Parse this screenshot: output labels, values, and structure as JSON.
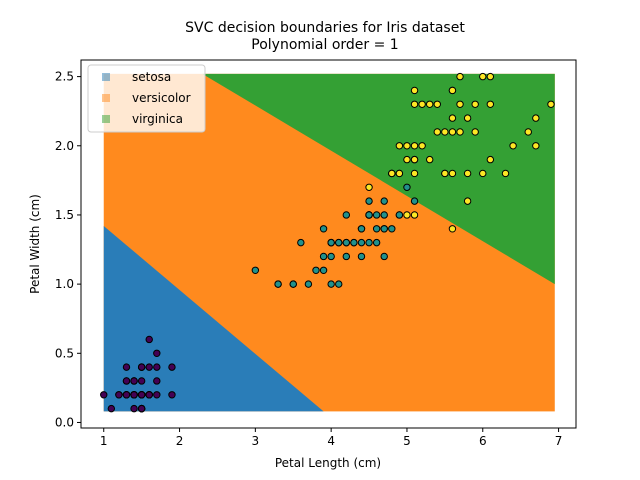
{
  "chart_data": {
    "type": "scatter",
    "title": "SVC decision boundaries for Iris dataset",
    "subtitle": "Polynomial order = 1",
    "xlabel": "Petal Length (cm)",
    "ylabel": "Petal Width (cm)",
    "xlim": [
      0.7,
      7.23
    ],
    "ylim": [
      -0.04,
      2.62
    ],
    "xticks": [
      "1",
      "2",
      "3",
      "4",
      "5",
      "6",
      "7"
    ],
    "yticks": [
      "0.0",
      "0.5",
      "1.0",
      "1.5",
      "2.0",
      "2.5"
    ],
    "grid": false,
    "legend": {
      "placement": "top-left",
      "entries": [
        "setosa",
        "versicolor",
        "virginica"
      ]
    },
    "region_colors": {
      "setosa": "#2a7db8",
      "versicolor": "#ff8a1e",
      "virginica": "#34a034"
    },
    "regions": {
      "x_range": [
        1.0,
        6.95
      ],
      "y_range": [
        0.08,
        2.52
      ],
      "setosa_versicolor_boundary": [
        [
          1.0,
          1.42
        ],
        [
          3.9,
          0.08
        ]
      ],
      "versicolor_virginica_boundary": [
        [
          2.3,
          2.52
        ],
        [
          6.95,
          1.0
        ]
      ]
    },
    "series": [
      {
        "class": "setosa",
        "color": "#440154",
        "points": [
          [
            1.4,
            0.2
          ],
          [
            1.4,
            0.2
          ],
          [
            1.3,
            0.2
          ],
          [
            1.5,
            0.2
          ],
          [
            1.4,
            0.2
          ],
          [
            1.7,
            0.4
          ],
          [
            1.4,
            0.3
          ],
          [
            1.5,
            0.2
          ],
          [
            1.4,
            0.2
          ],
          [
            1.5,
            0.1
          ],
          [
            1.5,
            0.2
          ],
          [
            1.6,
            0.2
          ],
          [
            1.4,
            0.1
          ],
          [
            1.1,
            0.1
          ],
          [
            1.2,
            0.2
          ],
          [
            1.5,
            0.4
          ],
          [
            1.3,
            0.4
          ],
          [
            1.4,
            0.3
          ],
          [
            1.7,
            0.3
          ],
          [
            1.5,
            0.3
          ],
          [
            1.7,
            0.2
          ],
          [
            1.5,
            0.4
          ],
          [
            1.0,
            0.2
          ],
          [
            1.7,
            0.5
          ],
          [
            1.9,
            0.2
          ],
          [
            1.6,
            0.2
          ],
          [
            1.6,
            0.4
          ],
          [
            1.5,
            0.2
          ],
          [
            1.4,
            0.2
          ],
          [
            1.6,
            0.2
          ],
          [
            1.6,
            0.2
          ],
          [
            1.5,
            0.4
          ],
          [
            1.5,
            0.1
          ],
          [
            1.4,
            0.2
          ],
          [
            1.5,
            0.1
          ],
          [
            1.2,
            0.2
          ],
          [
            1.3,
            0.2
          ],
          [
            1.5,
            0.1
          ],
          [
            1.3,
            0.2
          ],
          [
            1.5,
            0.2
          ],
          [
            1.3,
            0.3
          ],
          [
            1.3,
            0.3
          ],
          [
            1.3,
            0.2
          ],
          [
            1.6,
            0.6
          ],
          [
            1.9,
            0.4
          ],
          [
            1.4,
            0.3
          ],
          [
            1.6,
            0.2
          ],
          [
            1.4,
            0.2
          ],
          [
            1.5,
            0.2
          ],
          [
            1.4,
            0.2
          ]
        ]
      },
      {
        "class": "versicolor",
        "color": "#21918c",
        "points": [
          [
            4.7,
            1.4
          ],
          [
            4.5,
            1.5
          ],
          [
            4.9,
            1.5
          ],
          [
            4.0,
            1.3
          ],
          [
            4.6,
            1.5
          ],
          [
            4.5,
            1.3
          ],
          [
            4.7,
            1.6
          ],
          [
            3.3,
            1.0
          ],
          [
            4.6,
            1.3
          ],
          [
            3.9,
            1.4
          ],
          [
            3.5,
            1.0
          ],
          [
            4.2,
            1.5
          ],
          [
            4.0,
            1.0
          ],
          [
            4.7,
            1.4
          ],
          [
            3.6,
            1.3
          ],
          [
            4.4,
            1.4
          ],
          [
            4.5,
            1.5
          ],
          [
            4.1,
            1.0
          ],
          [
            4.5,
            1.5
          ],
          [
            3.9,
            1.1
          ],
          [
            4.8,
            1.8
          ],
          [
            4.0,
            1.3
          ],
          [
            4.9,
            1.5
          ],
          [
            4.7,
            1.2
          ],
          [
            4.3,
            1.3
          ],
          [
            4.4,
            1.4
          ],
          [
            4.8,
            1.4
          ],
          [
            5.0,
            1.7
          ],
          [
            4.5,
            1.5
          ],
          [
            3.5,
            1.0
          ],
          [
            3.8,
            1.1
          ],
          [
            3.7,
            1.0
          ],
          [
            3.9,
            1.2
          ],
          [
            5.1,
            1.6
          ],
          [
            4.5,
            1.5
          ],
          [
            4.5,
            1.6
          ],
          [
            4.7,
            1.5
          ],
          [
            4.4,
            1.3
          ],
          [
            4.1,
            1.3
          ],
          [
            4.0,
            1.3
          ],
          [
            4.4,
            1.2
          ],
          [
            4.6,
            1.4
          ],
          [
            4.0,
            1.2
          ],
          [
            3.3,
            1.0
          ],
          [
            4.2,
            1.3
          ],
          [
            4.2,
            1.2
          ],
          [
            4.2,
            1.3
          ],
          [
            4.3,
            1.3
          ],
          [
            3.0,
            1.1
          ],
          [
            4.1,
            1.3
          ]
        ]
      },
      {
        "class": "virginica",
        "color": "#fde725",
        "points": [
          [
            6.0,
            2.5
          ],
          [
            5.1,
            1.9
          ],
          [
            5.9,
            2.1
          ],
          [
            5.6,
            1.8
          ],
          [
            5.8,
            2.2
          ],
          [
            6.6,
            2.1
          ],
          [
            4.5,
            1.7
          ],
          [
            6.3,
            1.8
          ],
          [
            5.8,
            1.8
          ],
          [
            6.1,
            2.5
          ],
          [
            5.1,
            2.0
          ],
          [
            5.3,
            1.9
          ],
          [
            5.5,
            2.1
          ],
          [
            5.0,
            2.0
          ],
          [
            5.1,
            2.4
          ],
          [
            5.3,
            2.3
          ],
          [
            5.5,
            1.8
          ],
          [
            6.7,
            2.2
          ],
          [
            6.9,
            2.3
          ],
          [
            5.0,
            1.5
          ],
          [
            5.7,
            2.3
          ],
          [
            4.9,
            2.0
          ],
          [
            6.7,
            2.0
          ],
          [
            4.9,
            1.8
          ],
          [
            5.7,
            2.1
          ],
          [
            6.0,
            1.8
          ],
          [
            4.8,
            1.8
          ],
          [
            4.9,
            1.8
          ],
          [
            5.6,
            2.1
          ],
          [
            5.8,
            1.6
          ],
          [
            6.1,
            1.9
          ],
          [
            6.4,
            2.0
          ],
          [
            5.6,
            2.2
          ],
          [
            5.1,
            1.5
          ],
          [
            5.6,
            1.4
          ],
          [
            6.1,
            2.3
          ],
          [
            5.6,
            2.4
          ],
          [
            5.5,
            1.8
          ],
          [
            4.8,
            1.8
          ],
          [
            5.4,
            2.1
          ],
          [
            5.6,
            2.4
          ],
          [
            5.1,
            2.3
          ],
          [
            5.1,
            1.9
          ],
          [
            5.9,
            2.3
          ],
          [
            5.7,
            2.5
          ],
          [
            5.2,
            2.3
          ],
          [
            5.0,
            1.9
          ],
          [
            5.2,
            2.0
          ],
          [
            5.4,
            2.3
          ],
          [
            5.1,
            1.8
          ]
        ]
      }
    ]
  }
}
